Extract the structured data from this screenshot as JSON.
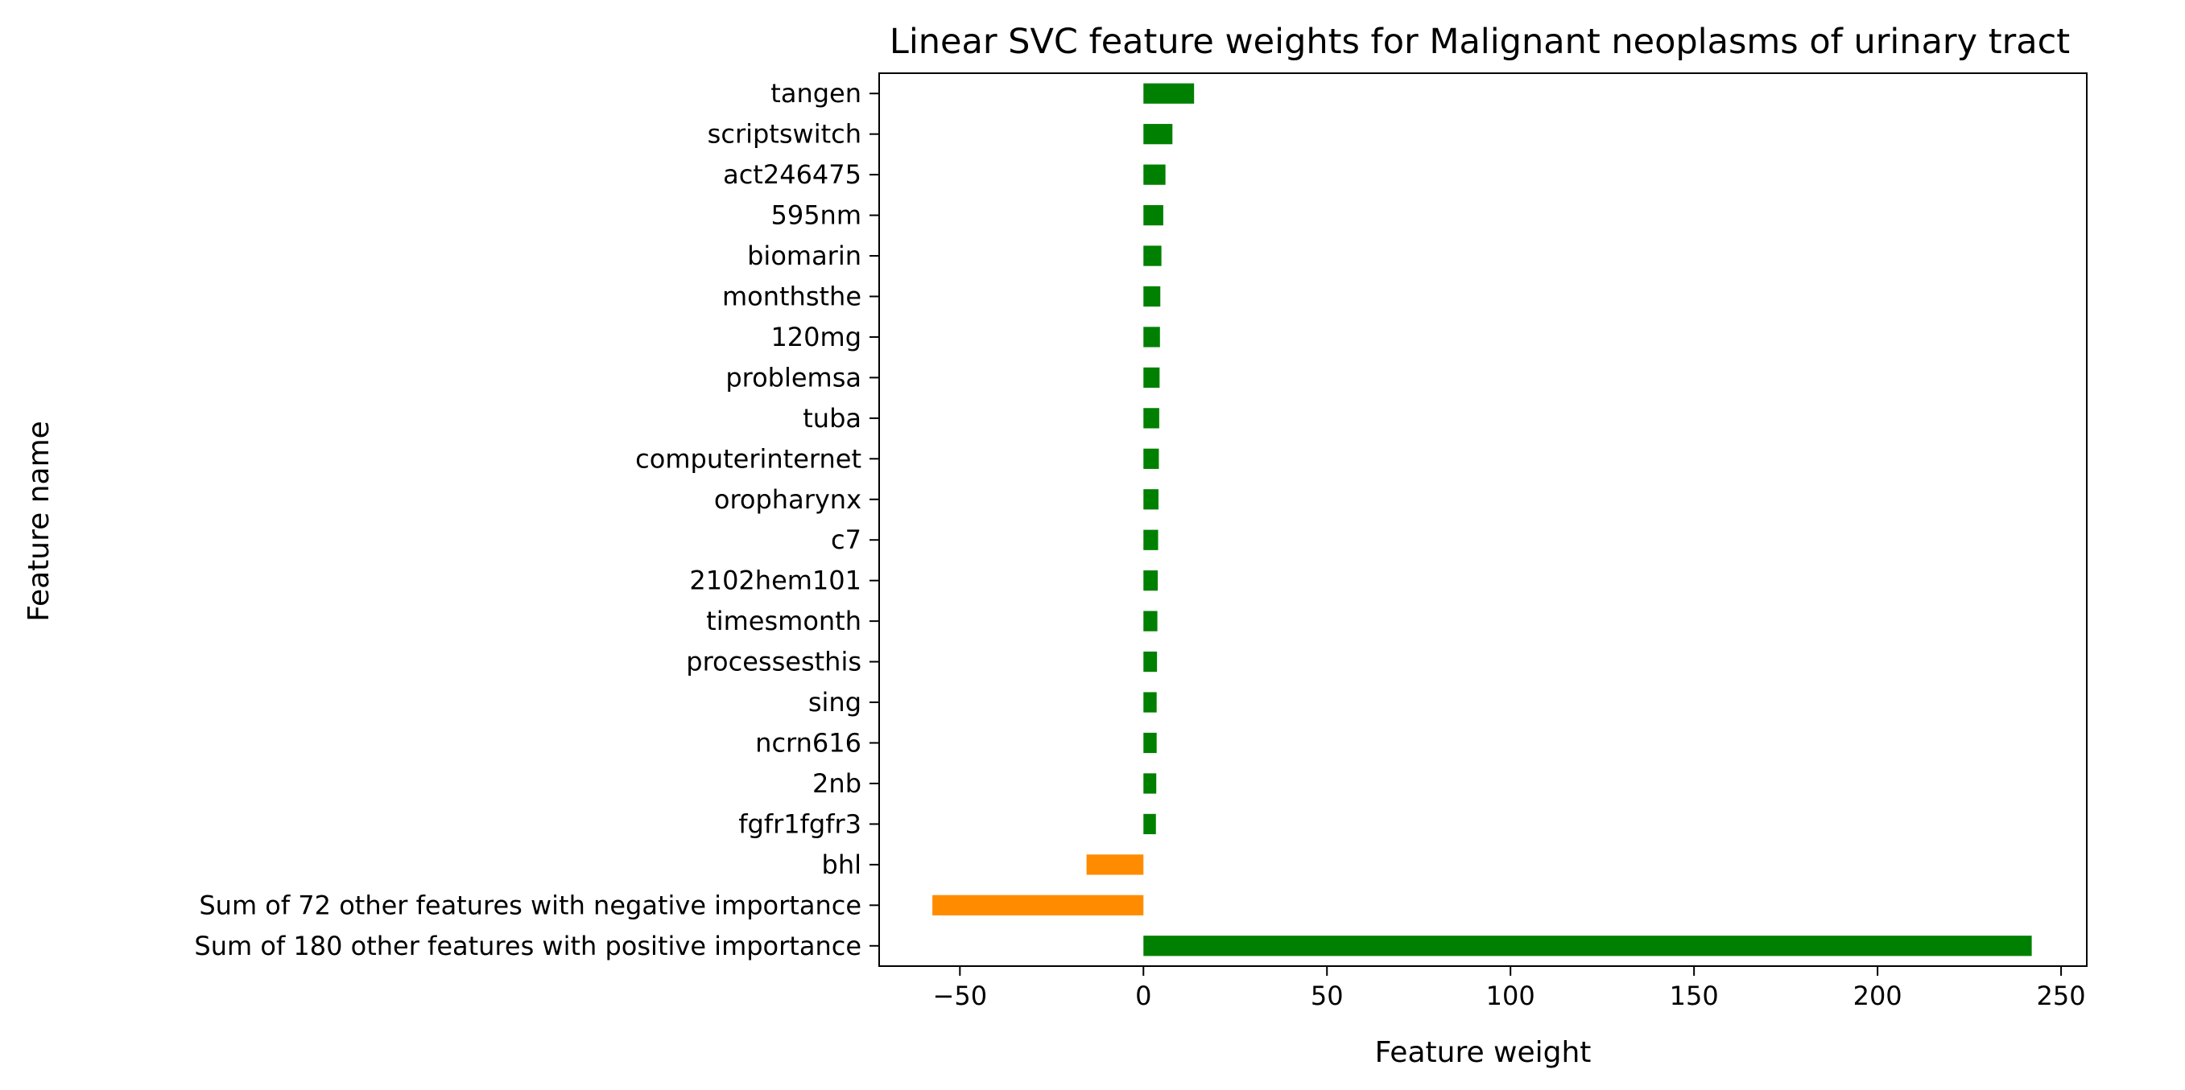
{
  "chart_data": {
    "type": "bar",
    "orientation": "horizontal",
    "title": "Linear SVC feature weights for Malignant neoplasms of urinary tract",
    "xlabel": "Feature weight",
    "ylabel": "Feature name",
    "xlim": [
      -72,
      257
    ],
    "xticks": [
      -50,
      0,
      50,
      100,
      150,
      200,
      250
    ],
    "xtick_labels": [
      "−50",
      "0",
      "50",
      "100",
      "150",
      "200",
      "250"
    ],
    "grid": false,
    "legend": "none",
    "colors": {
      "positive": "#008000",
      "negative": "#ff8c00",
      "text": "#000000",
      "axes": "#000000"
    },
    "categories": [
      "tangen",
      "scriptswitch",
      "act246475",
      "595nm",
      "biomarin",
      "monthsthe",
      "120mg",
      "problemsa",
      "tuba",
      "computerinternet",
      "oropharynx",
      "c7",
      "2102hem101",
      "timesmonth",
      "processesthis",
      "sing",
      "ncrn616",
      "2nb",
      "fgfr1fgfr3",
      "bhl",
      "Sum of 72 other features with negative importance",
      "Sum of 180 other features with positive importance"
    ],
    "values": [
      13.8,
      7.9,
      6.0,
      5.4,
      4.9,
      4.6,
      4.5,
      4.4,
      4.3,
      4.2,
      4.1,
      4.0,
      3.9,
      3.8,
      3.7,
      3.6,
      3.6,
      3.5,
      3.4,
      -15.5,
      -57.5,
      242.0
    ]
  }
}
